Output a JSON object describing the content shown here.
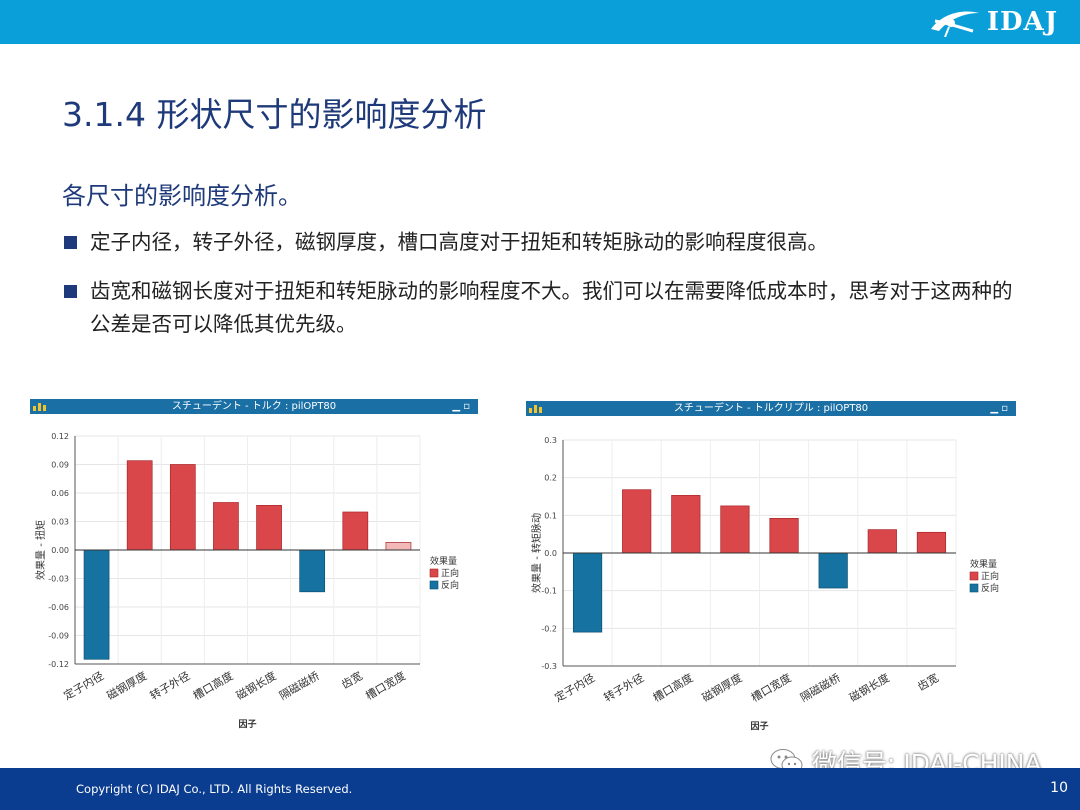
{
  "header": {
    "logo_text": "IDAJ"
  },
  "page_title": "3.1.4 形状尺寸的影响度分析",
  "subtitle": "各尺寸的影响度分析。",
  "bullets": [
    "定子内径，转子外径，磁钢厚度，槽口高度对于扭矩和转矩脉动的影响程度很高。",
    "齿宽和磁钢长度对于扭矩和转矩脉动的影响程度不大。我们可以在需要降低成本时，思考对于这两种的公差是否可以降低其优先级。"
  ],
  "colors": {
    "positive": "#d9474a",
    "positive_light": "#f2b9b8",
    "negative": "#1673a1",
    "header_bar": "#0a9fd8",
    "footer_bar": "#0a3d8f",
    "title_text": "#1f3a7a"
  },
  "chart_data": [
    {
      "type": "bar",
      "window_title": "スチューデント - トルク : pilOPT80",
      "window_buttons": "▁  ▫",
      "categories": [
        "定子内径",
        "磁钢厚度",
        "转子外径",
        "槽口高度",
        "磁钢长度",
        "隔磁磁桥",
        "齿宽",
        "槽口宽度"
      ],
      "values": [
        -0.115,
        0.094,
        0.09,
        0.05,
        0.047,
        -0.044,
        0.04,
        0.008
      ],
      "highlight_light_index": 7,
      "xlabel": "因子",
      "ylabel": "效果量 - 扭矩",
      "ylim": [
        -0.12,
        0.12
      ],
      "yticks": [
        0.12,
        0.09,
        0.06,
        0.03,
        0.0,
        -0.03,
        -0.06,
        -0.09,
        -0.12
      ],
      "ytick_labels": [
        "0.12",
        "0.09",
        "0.06",
        "0.03",
        "0.00",
        "-0.03",
        "-0.06",
        "-0.09",
        "-0.12"
      ],
      "legend": {
        "title": "效果量",
        "positive": "正向",
        "negative": "反向",
        "position": "right"
      },
      "grid": true
    },
    {
      "type": "bar",
      "window_title": "スチューデント - トルクリプル : pilOPT80",
      "window_buttons": "▁  ▫",
      "categories": [
        "定子内径",
        "转子外径",
        "槽口高度",
        "磁钢厚度",
        "槽口宽度",
        "隔磁磁桥",
        "磁钢长度",
        "齿宽"
      ],
      "values": [
        -0.21,
        0.168,
        0.153,
        0.125,
        0.092,
        -0.093,
        0.062,
        0.055
      ],
      "highlight_light_index": -1,
      "xlabel": "因子",
      "ylabel": "效果量 - 转矩脉动",
      "ylim": [
        -0.3,
        0.3
      ],
      "yticks": [
        0.3,
        0.2,
        0.1,
        0.0,
        -0.1,
        -0.2,
        -0.3
      ],
      "ytick_labels": [
        "0.3",
        "0.2",
        "0.1",
        "0.0",
        "-0.1",
        "-0.2",
        "-0.3"
      ],
      "legend": {
        "title": "效果量",
        "positive": "正向",
        "negative": "反向",
        "position": "right"
      },
      "grid": true
    }
  ],
  "footer": {
    "copyright": "Copyright (C)  IDAJ Co., LTD. All Rights Reserved.",
    "page_number": "10"
  },
  "watermark": "微信号: IDAJ-CHINA"
}
